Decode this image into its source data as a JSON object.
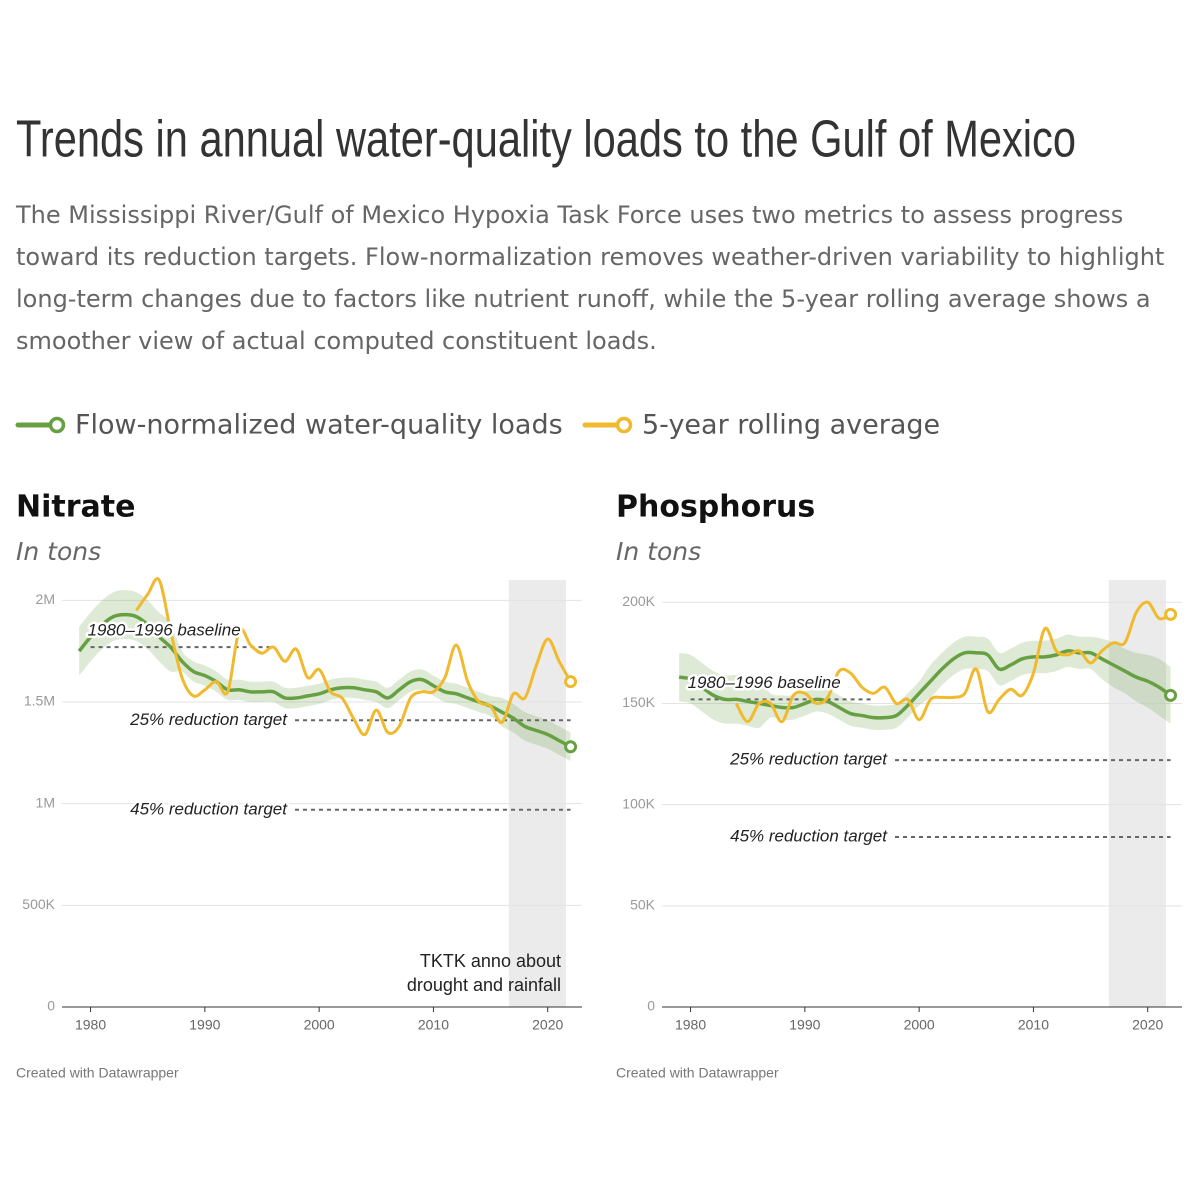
{
  "title": "Trends in annual water-quality loads to the Gulf of Mexico",
  "description": "The Mississippi River/Gulf of Mexico Hypoxia Task Force uses two metrics to assess progress toward its reduction targets. Flow-normalization removes weather-driven variability to highlight long-term changes due to factors like nutrient runoff, while the 5-year rolling average shows a smoother view of actual computed constituent loads.",
  "chart_data": [
    {
      "type": "line",
      "title": "Nitrate",
      "subtitle": "In tons",
      "credit": "Created with Datawrapper",
      "x": [
        1979,
        1980,
        1981,
        1982,
        1983,
        1984,
        1985,
        1986,
        1987,
        1988,
        1989,
        1990,
        1991,
        1992,
        1993,
        1994,
        1995,
        1996,
        1997,
        1998,
        1999,
        2000,
        2001,
        2002,
        2003,
        2004,
        2005,
        2006,
        2007,
        2008,
        2009,
        2010,
        2011,
        2012,
        2013,
        2014,
        2015,
        2016,
        2017,
        2018,
        2019,
        2020,
        2021,
        2022
      ],
      "series": [
        {
          "name": "Flow-normalized water-quality loads",
          "color": "#67a043",
          "values": [
            1750000,
            1820000,
            1880000,
            1920000,
            1930000,
            1920000,
            1880000,
            1820000,
            1770000,
            1700000,
            1650000,
            1630000,
            1600000,
            1560000,
            1560000,
            1550000,
            1550000,
            1550000,
            1520000,
            1520000,
            1530000,
            1540000,
            1560000,
            1570000,
            1570000,
            1560000,
            1550000,
            1520000,
            1560000,
            1600000,
            1610000,
            1580000,
            1550000,
            1540000,
            1520000,
            1500000,
            1480000,
            1450000,
            1420000,
            1380000,
            1360000,
            1340000,
            1310000,
            1280000
          ],
          "band_low": [
            1630000,
            1700000,
            1760000,
            1800000,
            1810000,
            1800000,
            1760000,
            1700000,
            1650000,
            1650000,
            1600000,
            1580000,
            1550000,
            1510000,
            1510000,
            1500000,
            1500000,
            1500000,
            1470000,
            1470000,
            1480000,
            1490000,
            1510000,
            1520000,
            1520000,
            1510000,
            1500000,
            1470000,
            1510000,
            1550000,
            1560000,
            1530000,
            1500000,
            1490000,
            1470000,
            1450000,
            1430000,
            1380000,
            1350000,
            1310000,
            1290000,
            1270000,
            1240000,
            1210000
          ],
          "band_high": [
            1870000,
            1940000,
            2000000,
            2040000,
            2050000,
            2040000,
            2000000,
            1940000,
            1890000,
            1750000,
            1700000,
            1680000,
            1650000,
            1610000,
            1610000,
            1600000,
            1600000,
            1600000,
            1570000,
            1570000,
            1580000,
            1590000,
            1610000,
            1620000,
            1620000,
            1610000,
            1600000,
            1570000,
            1610000,
            1650000,
            1660000,
            1630000,
            1600000,
            1590000,
            1570000,
            1550000,
            1530000,
            1520000,
            1490000,
            1450000,
            1430000,
            1410000,
            1380000,
            1350000
          ]
        },
        {
          "name": "5-year rolling average",
          "color": "#f0b92e",
          "values": [
            null,
            null,
            null,
            null,
            null,
            1950000,
            2030000,
            2100000,
            1850000,
            1620000,
            1530000,
            1560000,
            1600000,
            1550000,
            1850000,
            1780000,
            1740000,
            1770000,
            1700000,
            1760000,
            1620000,
            1660000,
            1550000,
            1520000,
            1420000,
            1340000,
            1460000,
            1350000,
            1380000,
            1520000,
            1550000,
            1550000,
            1620000,
            1780000,
            1600000,
            1500000,
            1480000,
            1400000,
            1540000,
            1520000,
            1680000,
            1810000,
            1700000,
            1600000
          ]
        }
      ],
      "xlim": [
        1977.5,
        2023
      ],
      "xticks": [
        1980,
        1990,
        2000,
        2010,
        2020
      ],
      "ylim": [
        0,
        2100000
      ],
      "yticks": [
        0,
        {
          "value": 500000,
          "label": "500K"
        },
        {
          "value": 1000000,
          "label": "1M"
        },
        {
          "value": 1500000,
          "label": "1.5M"
        },
        {
          "value": 2000000,
          "label": "2M"
        }
      ],
      "grid": true,
      "highlight_range": [
        2016.6,
        2021.6
      ],
      "reference_lines": [
        {
          "label": "1980–1996 baseline",
          "value": 1770000,
          "x_range": [
            1980,
            1996
          ]
        },
        {
          "label": "25% reduction target",
          "value": 1410000
        },
        {
          "label": "45% reduction target",
          "value": 970000
        }
      ],
      "annotation": [
        "TKTK anno about",
        "drought and rainfall"
      ]
    },
    {
      "type": "line",
      "title": "Phosphorus",
      "subtitle": "In tons",
      "credit": "Created with Datawrapper",
      "x": [
        1979,
        1980,
        1981,
        1982,
        1983,
        1984,
        1985,
        1986,
        1987,
        1988,
        1989,
        1990,
        1991,
        1992,
        1993,
        1994,
        1995,
        1996,
        1997,
        1998,
        1999,
        2000,
        2001,
        2002,
        2003,
        2004,
        2005,
        2006,
        2007,
        2008,
        2009,
        2010,
        2011,
        2012,
        2013,
        2014,
        2015,
        2016,
        2017,
        2018,
        2019,
        2020,
        2021,
        2022
      ],
      "series": [
        {
          "name": "Flow-normalized water-quality loads",
          "color": "#67a043",
          "values": [
            163000,
            162000,
            158000,
            154000,
            152000,
            152000,
            151000,
            150000,
            149000,
            148000,
            148000,
            150000,
            152000,
            151000,
            148000,
            145000,
            144000,
            143000,
            143000,
            144000,
            149000,
            155000,
            161000,
            167000,
            172000,
            175000,
            175000,
            174000,
            167000,
            169000,
            172000,
            173000,
            173000,
            174000,
            176000,
            175000,
            175000,
            172000,
            169000,
            166000,
            163000,
            161000,
            158000,
            154000
          ],
          "band_low": [
            151000,
            150000,
            146000,
            142000,
            140000,
            140000,
            139000,
            138000,
            143000,
            142000,
            142000,
            144000,
            146000,
            145000,
            142000,
            139000,
            138000,
            137000,
            137000,
            138000,
            143000,
            149000,
            153000,
            159000,
            164000,
            167000,
            167000,
            166000,
            159000,
            161000,
            164000,
            165000,
            165000,
            166000,
            168000,
            167000,
            167000,
            162000,
            158000,
            155000,
            151000,
            148000,
            144000,
            140000
          ],
          "band_high": [
            175000,
            174000,
            170000,
            166000,
            164000,
            164000,
            163000,
            162000,
            155000,
            154000,
            154000,
            156000,
            158000,
            157000,
            154000,
            151000,
            150000,
            149000,
            149000,
            150000,
            155000,
            161000,
            169000,
            175000,
            180000,
            183000,
            183000,
            182000,
            175000,
            177000,
            180000,
            181000,
            181000,
            182000,
            184000,
            183000,
            183000,
            182000,
            180000,
            177000,
            175000,
            174000,
            172000,
            168000
          ]
        },
        {
          "name": "5-year rolling average",
          "color": "#f0b92e",
          "values": [
            null,
            null,
            null,
            null,
            null,
            150000,
            141000,
            150000,
            150000,
            141000,
            154000,
            155000,
            150000,
            153000,
            166000,
            165000,
            158000,
            155000,
            158000,
            150000,
            152000,
            142000,
            152000,
            153000,
            153000,
            155000,
            167000,
            146000,
            152000,
            157000,
            154000,
            165000,
            187000,
            176000,
            174000,
            176000,
            170000,
            176000,
            180000,
            180000,
            195000,
            200000,
            192000,
            194000
          ]
        }
      ],
      "xlim": [
        1977.5,
        2023
      ],
      "xticks": [
        1980,
        1990,
        2000,
        2010,
        2020
      ],
      "ylim": [
        0,
        211000
      ],
      "yticks": [
        0,
        {
          "value": 50000,
          "label": "50K"
        },
        {
          "value": 100000,
          "label": "100K"
        },
        {
          "value": 150000,
          "label": "150K"
        },
        {
          "value": 200000,
          "label": "200K"
        }
      ],
      "grid": true,
      "highlight_range": [
        2016.6,
        2021.6
      ],
      "reference_lines": [
        {
          "label": "1980–1996 baseline",
          "value": 152000,
          "x_range": [
            1980,
            1996
          ]
        },
        {
          "label": "25% reduction target",
          "value": 122000
        },
        {
          "label": "45% reduction target",
          "value": 84000
        }
      ]
    }
  ]
}
